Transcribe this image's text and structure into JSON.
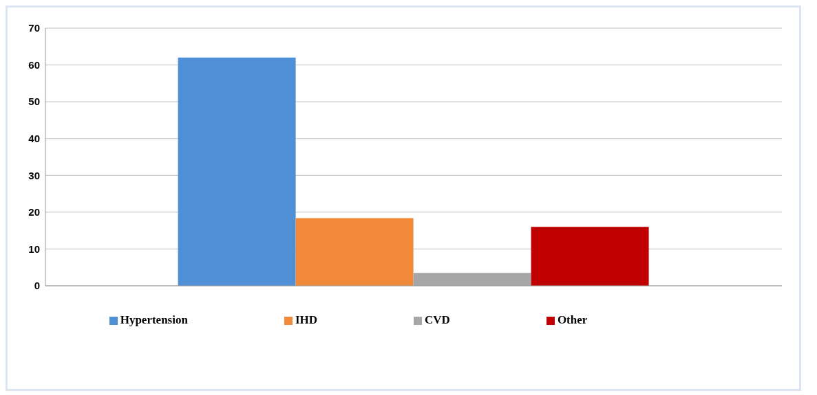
{
  "chart_data": {
    "type": "bar",
    "categories": [
      null
    ],
    "series": [
      {
        "name": "Hypertension",
        "color": "#4f8fd6",
        "values": [
          62
        ]
      },
      {
        "name": "IHD",
        "color": "#f08a3a",
        "values": [
          18.4
        ]
      },
      {
        "name": "CVD",
        "color": "#a6a6a6",
        "values": [
          3.5
        ]
      },
      {
        "name": "Other",
        "color": "#c00000",
        "values": [
          16
        ]
      }
    ],
    "ylim": [
      0,
      70
    ],
    "yticks": [
      0,
      10,
      20,
      30,
      40,
      50,
      60,
      70
    ],
    "grid": "y",
    "legend": "bottom"
  }
}
